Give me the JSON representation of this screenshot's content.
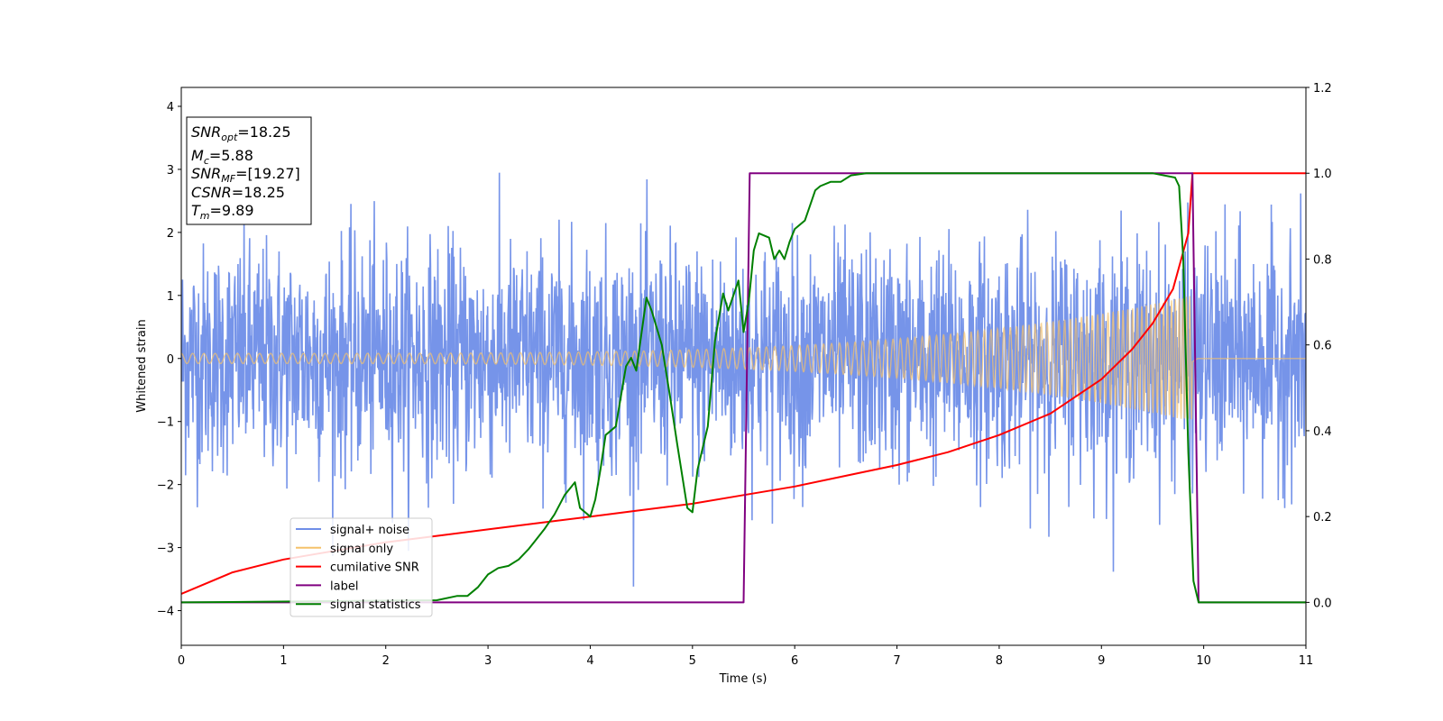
{
  "chart_data": {
    "type": "line",
    "xlabel": "Time (s)",
    "ylabel": "Whitened strain",
    "xlim": [
      0,
      11
    ],
    "ylim_left": [
      -4.55,
      4.3
    ],
    "ylim_right": [
      -0.1,
      1.2
    ],
    "x_ticks": [
      0,
      1,
      2,
      3,
      4,
      5,
      6,
      7,
      8,
      9,
      10,
      11
    ],
    "y_ticks_left": [
      -4,
      -3,
      -2,
      -1,
      0,
      1,
      2,
      3,
      4
    ],
    "y_ticks_right": [
      0.0,
      0.2,
      0.4,
      0.6,
      0.8,
      1.0,
      1.2
    ],
    "y_tick_labels_right": [
      "0.0",
      "0.2",
      "0.4",
      "0.6",
      "0.8",
      "1.0",
      "1.2"
    ],
    "legend_position": "lower-left",
    "series": [
      {
        "name": "signal+ noise",
        "color": "#6f8ee8",
        "axis": "left",
        "kind": "noise",
        "std": 1.0,
        "range": [
          -4.2,
          3.9
        ]
      },
      {
        "name": "signal only",
        "color": "#f5c26b",
        "axis": "left",
        "kind": "chirp",
        "amplitude_start": 0.08,
        "amplitude_end": 1.0,
        "merger_time": 9.89
      },
      {
        "name": "cumilative SNR",
        "color": "#ff0000",
        "axis": "right",
        "x": [
          0,
          0.5,
          1,
          1.5,
          2,
          2.5,
          3,
          3.5,
          4,
          4.5,
          5,
          5.5,
          6,
          6.5,
          7,
          7.5,
          8,
          8.5,
          9,
          9.3,
          9.5,
          9.7,
          9.85,
          9.89,
          11
        ],
        "y": [
          0.02,
          0.07,
          0.1,
          0.12,
          0.14,
          0.155,
          0.17,
          0.185,
          0.2,
          0.215,
          0.23,
          0.25,
          0.27,
          0.295,
          0.32,
          0.35,
          0.39,
          0.44,
          0.52,
          0.59,
          0.65,
          0.73,
          0.86,
          1.0,
          1.0
        ]
      },
      {
        "name": "label",
        "color": "#800080",
        "axis": "right",
        "x": [
          0,
          5.5,
          5.56,
          9.89,
          9.95,
          11
        ],
        "y": [
          0,
          0,
          1,
          1,
          0,
          0
        ]
      },
      {
        "name": "signal statistics",
        "color": "#008000",
        "axis": "right",
        "x": [
          0,
          2.5,
          2.7,
          2.8,
          2.9,
          3.0,
          3.1,
          3.2,
          3.3,
          3.4,
          3.45,
          3.55,
          3.65,
          3.75,
          3.85,
          3.9,
          4.0,
          4.05,
          4.1,
          4.15,
          4.25,
          4.35,
          4.4,
          4.45,
          4.55,
          4.6,
          4.7,
          4.78,
          4.85,
          4.95,
          5.0,
          5.05,
          5.15,
          5.22,
          5.3,
          5.35,
          5.45,
          5.5,
          5.55,
          5.6,
          5.65,
          5.75,
          5.8,
          5.85,
          5.9,
          5.95,
          6.0,
          6.1,
          6.2,
          6.25,
          6.35,
          6.45,
          6.55,
          6.7,
          7.0,
          8.0,
          9.0,
          9.5,
          9.72,
          9.76,
          9.8,
          9.85,
          9.9,
          9.95,
          11
        ],
        "y": [
          0,
          0.005,
          0.015,
          0.015,
          0.035,
          0.065,
          0.08,
          0.085,
          0.1,
          0.125,
          0.14,
          0.17,
          0.205,
          0.25,
          0.28,
          0.22,
          0.2,
          0.24,
          0.31,
          0.39,
          0.41,
          0.55,
          0.57,
          0.54,
          0.71,
          0.68,
          0.6,
          0.48,
          0.37,
          0.22,
          0.21,
          0.31,
          0.41,
          0.61,
          0.72,
          0.68,
          0.75,
          0.63,
          0.7,
          0.82,
          0.86,
          0.85,
          0.8,
          0.82,
          0.8,
          0.84,
          0.87,
          0.89,
          0.96,
          0.97,
          0.98,
          0.98,
          0.995,
          1.0,
          1.0,
          1.0,
          1.0,
          1.0,
          0.99,
          0.97,
          0.8,
          0.35,
          0.05,
          0.0,
          0.0
        ]
      }
    ]
  },
  "annotation": {
    "lines": [
      {
        "sym": "SNR",
        "sub": "opt",
        "value": "=18.25"
      },
      {
        "sym": "M",
        "sub": "c",
        "value": "=5.88"
      },
      {
        "sym": "SNR",
        "sub": "MF",
        "value": "=[19.27]"
      },
      {
        "sym": "CSNR",
        "sub": "",
        "value": "=18.25"
      },
      {
        "sym": "T",
        "sub": "m",
        "value": "=9.89"
      }
    ]
  }
}
